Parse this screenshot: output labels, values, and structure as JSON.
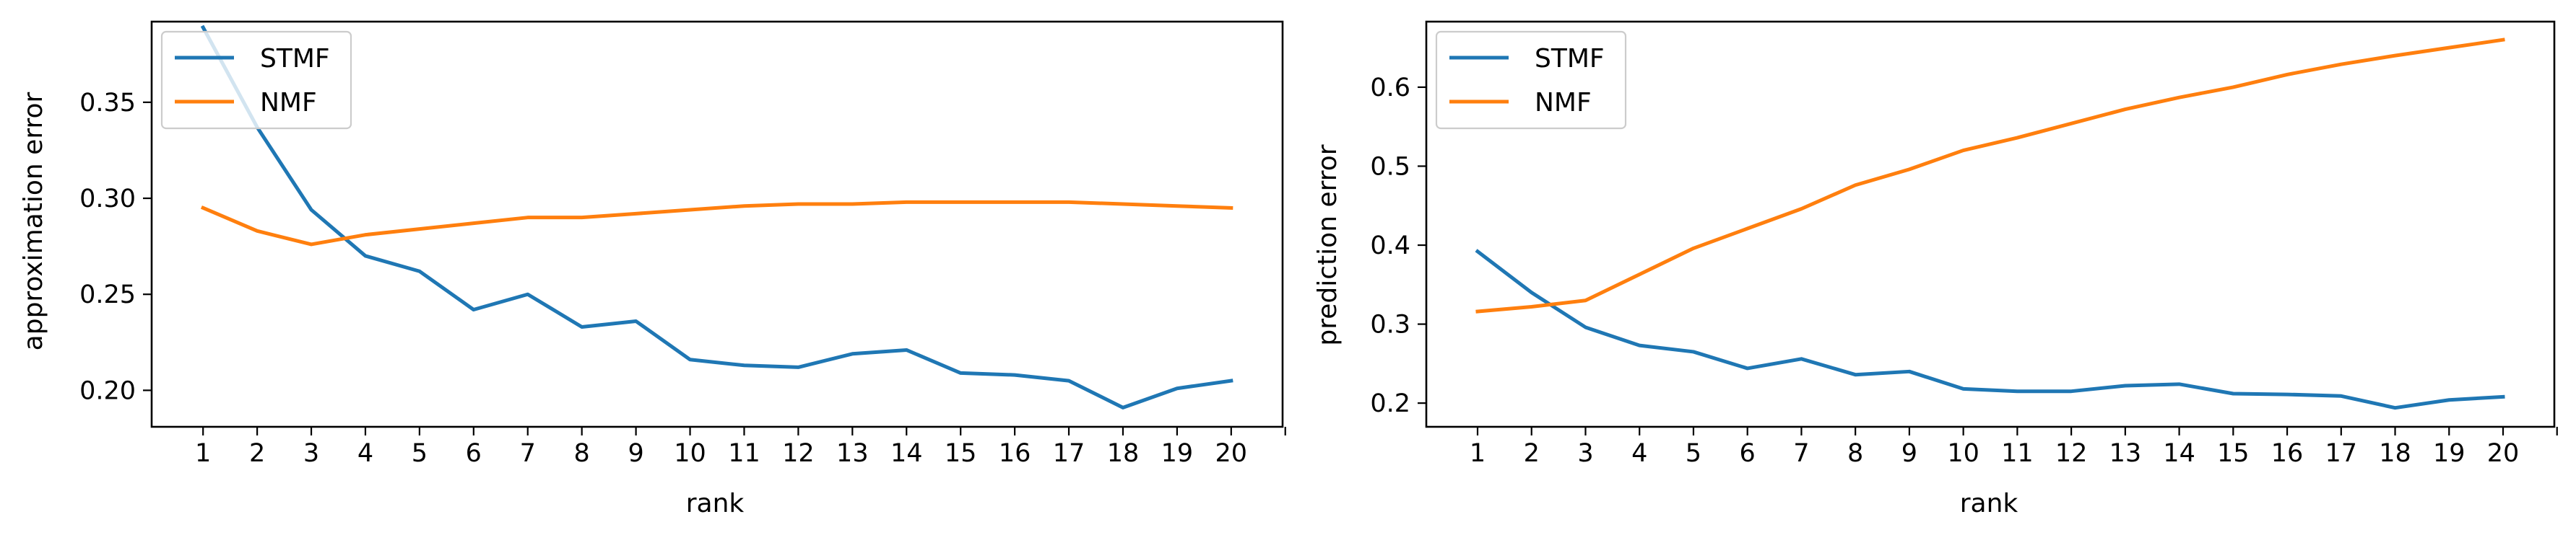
{
  "chart_data": [
    {
      "type": "line",
      "title": "",
      "xlabel": "rank",
      "ylabel": "approximation error",
      "x": [
        1,
        2,
        3,
        4,
        5,
        6,
        7,
        8,
        9,
        10,
        11,
        12,
        13,
        14,
        15,
        16,
        17,
        18,
        19,
        20
      ],
      "xlim": [
        0.05,
        20.95
      ],
      "ylim": [
        0.181,
        0.392
      ],
      "yticks": [
        0.2,
        0.25,
        0.3,
        0.35
      ],
      "ytick_labels": [
        "0.20",
        "0.25",
        "0.30",
        "0.35"
      ],
      "grid": false,
      "legend_position": "upper-left",
      "series": [
        {
          "name": "STMF",
          "color": "#1f77b4",
          "values": [
            0.389,
            0.337,
            0.294,
            0.27,
            0.262,
            0.242,
            0.25,
            0.233,
            0.236,
            0.216,
            0.213,
            0.212,
            0.219,
            0.221,
            0.209,
            0.208,
            0.205,
            0.191,
            0.201,
            0.205
          ]
        },
        {
          "name": "NMF",
          "color": "#ff7f0e",
          "values": [
            0.295,
            0.283,
            0.276,
            0.281,
            0.284,
            0.287,
            0.29,
            0.29,
            0.292,
            0.294,
            0.296,
            0.297,
            0.297,
            0.298,
            0.298,
            0.298,
            0.298,
            0.297,
            0.296,
            0.295
          ]
        }
      ]
    },
    {
      "type": "line",
      "title": "",
      "xlabel": "rank",
      "ylabel": "prediction error",
      "x": [
        1,
        2,
        3,
        4,
        5,
        6,
        7,
        8,
        9,
        10,
        11,
        12,
        13,
        14,
        15,
        16,
        17,
        18,
        19,
        20
      ],
      "xlim": [
        0.05,
        20.95
      ],
      "ylim": [
        0.17,
        0.683
      ],
      "yticks": [
        0.2,
        0.3,
        0.4,
        0.5,
        0.6
      ],
      "ytick_labels": [
        "0.2",
        "0.3",
        "0.4",
        "0.5",
        "0.6"
      ],
      "grid": false,
      "legend_position": "upper-left",
      "series": [
        {
          "name": "STMF",
          "color": "#1f77b4",
          "values": [
            0.392,
            0.34,
            0.296,
            0.273,
            0.265,
            0.244,
            0.256,
            0.236,
            0.24,
            0.218,
            0.215,
            0.215,
            0.222,
            0.224,
            0.212,
            0.211,
            0.209,
            0.194,
            0.204,
            0.208
          ]
        },
        {
          "name": "NMF",
          "color": "#ff7f0e",
          "values": [
            0.316,
            0.322,
            0.33,
            0.363,
            0.396,
            0.421,
            0.446,
            0.476,
            0.496,
            0.52,
            0.536,
            0.554,
            0.572,
            0.587,
            0.6,
            0.616,
            0.629,
            0.64,
            0.65,
            0.66
          ]
        }
      ]
    }
  ]
}
